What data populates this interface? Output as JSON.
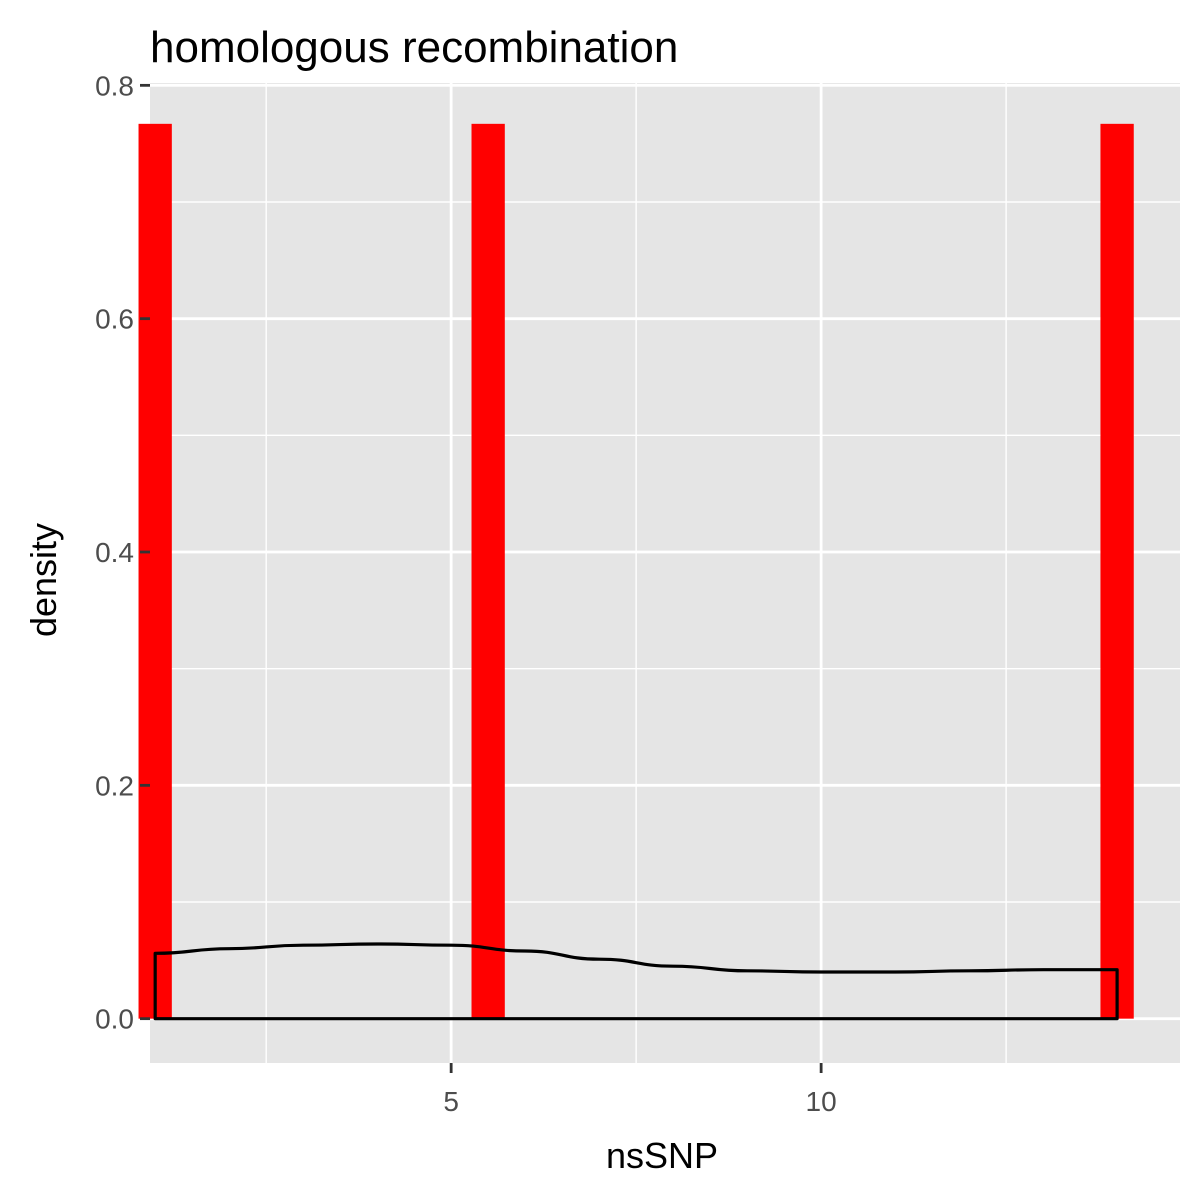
{
  "chart_data": {
    "type": "bar",
    "title": "homologous recombination",
    "xlabel": "nsSNP",
    "ylabel": "density",
    "xlim": [
      0.93,
      14.85
    ],
    "ylim": [
      -0.038,
      0.802
    ],
    "x_ticks": [
      5,
      10
    ],
    "x_minor_ticks": [
      2.5,
      7.5,
      12.5
    ],
    "y_ticks": [
      0.0,
      0.2,
      0.4,
      0.6,
      0.8
    ],
    "y_minor_ticks": [
      0.1,
      0.3,
      0.5,
      0.7
    ],
    "histogram": {
      "bin_width": 0.45,
      "fill_color": "#ff0000",
      "bins": [
        {
          "x": 1.0,
          "density": 0.767
        },
        {
          "x": 5.5,
          "density": 0.767
        },
        {
          "x": 14.0,
          "density": 0.767
        }
      ]
    },
    "density_curve": {
      "stroke_color": "#000000",
      "x": [
        1.0,
        2.0,
        3.0,
        4.0,
        5.0,
        6.0,
        7.0,
        8.0,
        9.0,
        10.0,
        11.0,
        12.0,
        13.0,
        14.0
      ],
      "y": [
        0.056,
        0.06,
        0.063,
        0.064,
        0.063,
        0.058,
        0.051,
        0.045,
        0.041,
        0.04,
        0.04,
        0.041,
        0.042,
        0.042
      ]
    },
    "panel_background": "#e5e5e5",
    "grid": true
  }
}
